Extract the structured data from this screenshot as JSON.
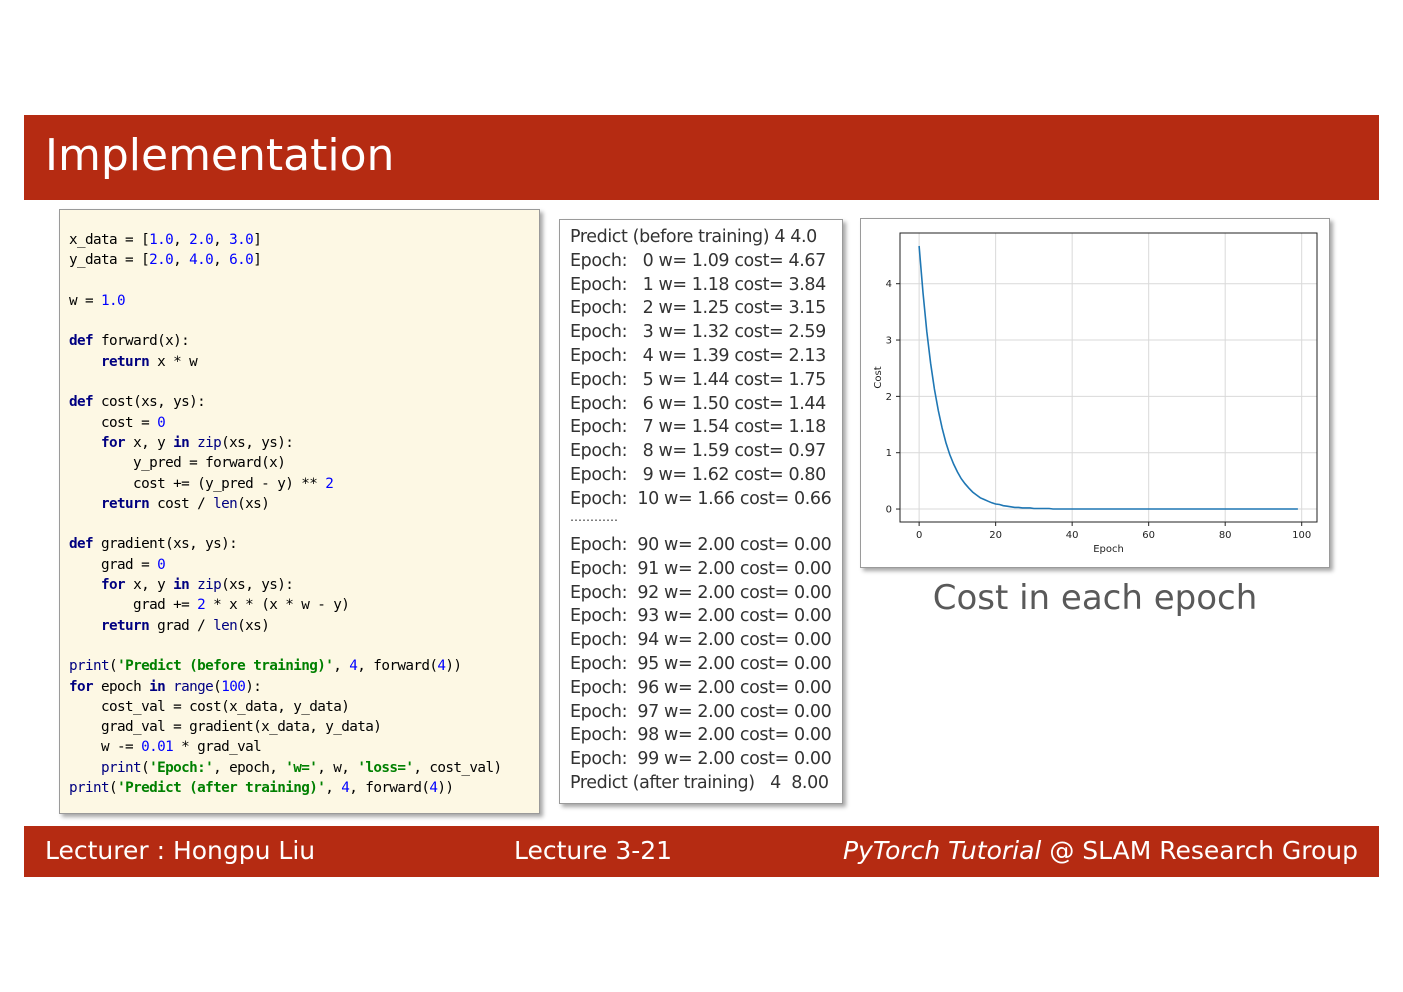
{
  "slide": {
    "title": "Implementation",
    "caption": "Cost in each epoch"
  },
  "code": {
    "lines": [
      [
        [
          "plain",
          "x_data = ["
        ],
        [
          "num",
          "1.0"
        ],
        [
          "plain",
          ", "
        ],
        [
          "num",
          "2.0"
        ],
        [
          "plain",
          ", "
        ],
        [
          "num",
          "3.0"
        ],
        [
          "plain",
          "]"
        ]
      ],
      [
        [
          "plain",
          "y_data = ["
        ],
        [
          "num",
          "2.0"
        ],
        [
          "plain",
          ", "
        ],
        [
          "num",
          "4.0"
        ],
        [
          "plain",
          ", "
        ],
        [
          "num",
          "6.0"
        ],
        [
          "plain",
          "]"
        ]
      ],
      [],
      [
        [
          "plain",
          "w = "
        ],
        [
          "num",
          "1.0"
        ]
      ],
      [],
      [
        [
          "kw",
          "def"
        ],
        [
          "plain",
          " forward(x):"
        ]
      ],
      [
        [
          "plain",
          "    "
        ],
        [
          "kw",
          "return"
        ],
        [
          "plain",
          " x * w"
        ]
      ],
      [],
      [
        [
          "kw",
          "def"
        ],
        [
          "plain",
          " cost(xs, ys):"
        ]
      ],
      [
        [
          "plain",
          "    cost = "
        ],
        [
          "num",
          "0"
        ]
      ],
      [
        [
          "plain",
          "    "
        ],
        [
          "kw",
          "for"
        ],
        [
          "plain",
          " x, y "
        ],
        [
          "kw",
          "in"
        ],
        [
          "plain",
          " "
        ],
        [
          "bi",
          "zip"
        ],
        [
          "plain",
          "(xs, ys):"
        ]
      ],
      [
        [
          "plain",
          "        y_pred = forward(x)"
        ]
      ],
      [
        [
          "plain",
          "        cost += (y_pred - y) ** "
        ],
        [
          "num",
          "2"
        ]
      ],
      [
        [
          "plain",
          "    "
        ],
        [
          "kw",
          "return"
        ],
        [
          "plain",
          " cost / "
        ],
        [
          "bi",
          "len"
        ],
        [
          "plain",
          "(xs)"
        ]
      ],
      [],
      [
        [
          "kw",
          "def"
        ],
        [
          "plain",
          " gradient(xs, ys):"
        ]
      ],
      [
        [
          "plain",
          "    grad = "
        ],
        [
          "num",
          "0"
        ]
      ],
      [
        [
          "plain",
          "    "
        ],
        [
          "kw",
          "for"
        ],
        [
          "plain",
          " x, y "
        ],
        [
          "kw",
          "in"
        ],
        [
          "plain",
          " "
        ],
        [
          "bi",
          "zip"
        ],
        [
          "plain",
          "(xs, ys):"
        ]
      ],
      [
        [
          "plain",
          "        grad += "
        ],
        [
          "num",
          "2"
        ],
        [
          "plain",
          " * x * (x * w - y)"
        ]
      ],
      [
        [
          "plain",
          "    "
        ],
        [
          "kw",
          "return"
        ],
        [
          "plain",
          " grad / "
        ],
        [
          "bi",
          "len"
        ],
        [
          "plain",
          "(xs)"
        ]
      ],
      [],
      [
        [
          "bi",
          "print"
        ],
        [
          "plain",
          "("
        ],
        [
          "str",
          "'Predict (before training)'"
        ],
        [
          "plain",
          ", "
        ],
        [
          "num",
          "4"
        ],
        [
          "plain",
          ", forward("
        ],
        [
          "num",
          "4"
        ],
        [
          "plain",
          "))"
        ]
      ],
      [
        [
          "kw",
          "for"
        ],
        [
          "plain",
          " epoch "
        ],
        [
          "kw",
          "in"
        ],
        [
          "plain",
          " "
        ],
        [
          "bi",
          "range"
        ],
        [
          "plain",
          "("
        ],
        [
          "num",
          "100"
        ],
        [
          "plain",
          "):"
        ]
      ],
      [
        [
          "plain",
          "    cost_val = cost(x_data, y_data)"
        ]
      ],
      [
        [
          "plain",
          "    grad_val = gradient(x_data, y_data)"
        ]
      ],
      [
        [
          "plain",
          "    w -= "
        ],
        [
          "num",
          "0.01"
        ],
        [
          "plain",
          " * grad_val"
        ]
      ],
      [
        [
          "plain",
          "    "
        ],
        [
          "bi",
          "print"
        ],
        [
          "plain",
          "("
        ],
        [
          "str",
          "'Epoch:'"
        ],
        [
          "plain",
          ", epoch, "
        ],
        [
          "str",
          "'w='"
        ],
        [
          "plain",
          ", w, "
        ],
        [
          "str",
          "'loss='"
        ],
        [
          "plain",
          ", cost_val)"
        ]
      ],
      [
        [
          "bi",
          "print"
        ],
        [
          "plain",
          "("
        ],
        [
          "str",
          "'Predict (after training)'"
        ],
        [
          "plain",
          ", "
        ],
        [
          "num",
          "4"
        ],
        [
          "plain",
          ", forward("
        ],
        [
          "num",
          "4"
        ],
        [
          "plain",
          "))"
        ]
      ]
    ]
  },
  "output": {
    "first_block": [
      "Predict (before training) 4 4.0",
      "Epoch:   0 w= 1.09 cost= 4.67",
      "Epoch:   1 w= 1.18 cost= 3.84",
      "Epoch:   2 w= 1.25 cost= 3.15",
      "Epoch:   3 w= 1.32 cost= 2.59",
      "Epoch:   4 w= 1.39 cost= 2.13",
      "Epoch:   5 w= 1.44 cost= 1.75",
      "Epoch:   6 w= 1.50 cost= 1.44",
      "Epoch:   7 w= 1.54 cost= 1.18",
      "Epoch:   8 w= 1.59 cost= 0.97",
      "Epoch:   9 w= 1.62 cost= 0.80",
      "Epoch:  10 w= 1.66 cost= 0.66"
    ],
    "ellipsis": "…………",
    "second_block": [
      "Epoch:  90 w= 2.00 cost= 0.00",
      "Epoch:  91 w= 2.00 cost= 0.00",
      "Epoch:  92 w= 2.00 cost= 0.00",
      "Epoch:  93 w= 2.00 cost= 0.00",
      "Epoch:  94 w= 2.00 cost= 0.00",
      "Epoch:  95 w= 2.00 cost= 0.00",
      "Epoch:  96 w= 2.00 cost= 0.00",
      "Epoch:  97 w= 2.00 cost= 0.00",
      "Epoch:  98 w= 2.00 cost= 0.00",
      "Epoch:  99 w= 2.00 cost= 0.00",
      "Predict (after training)   4  8.00"
    ]
  },
  "chart_data": {
    "type": "line",
    "title": "",
    "xlabel": "Epoch",
    "ylabel": "Cost",
    "xlim": [
      -5,
      104
    ],
    "ylim": [
      -0.23,
      4.9
    ],
    "xticks": [
      0,
      20,
      40,
      60,
      80,
      100
    ],
    "yticks": [
      0,
      1,
      2,
      3,
      4
    ],
    "grid": true,
    "line_color": "#1f77b4",
    "series": [
      {
        "x_start": 0,
        "x_end": 99,
        "values": [
          4.67,
          3.84,
          3.15,
          2.59,
          2.13,
          1.75,
          1.44,
          1.18,
          0.97,
          0.8,
          0.66,
          0.54,
          0.45,
          0.37,
          0.3,
          0.25,
          0.2,
          0.17,
          0.14,
          0.11,
          0.09,
          0.08,
          0.06,
          0.05,
          0.04,
          0.03,
          0.03,
          0.02,
          0.02,
          0.02,
          0.01,
          0.01,
          0.01,
          0.01,
          0.01,
          0.0,
          0.0,
          0.0,
          0.0,
          0.0,
          0.0,
          0.0,
          0.0,
          0.0,
          0.0,
          0.0,
          0.0,
          0.0,
          0.0,
          0.0,
          0.0,
          0.0,
          0.0,
          0.0,
          0.0,
          0.0,
          0.0,
          0.0,
          0.0,
          0.0,
          0.0,
          0.0,
          0.0,
          0.0,
          0.0,
          0.0,
          0.0,
          0.0,
          0.0,
          0.0,
          0.0,
          0.0,
          0.0,
          0.0,
          0.0,
          0.0,
          0.0,
          0.0,
          0.0,
          0.0,
          0.0,
          0.0,
          0.0,
          0.0,
          0.0,
          0.0,
          0.0,
          0.0,
          0.0,
          0.0,
          0.0,
          0.0,
          0.0,
          0.0,
          0.0,
          0.0,
          0.0,
          0.0,
          0.0,
          0.0
        ]
      }
    ]
  },
  "footer": {
    "lecturer": "Lecturer : Hongpu Liu",
    "lecture_num": "Lecture 3-21",
    "brand_italic": "PyTorch Tutorial",
    "brand_rest": " @ SLAM Research Group"
  }
}
